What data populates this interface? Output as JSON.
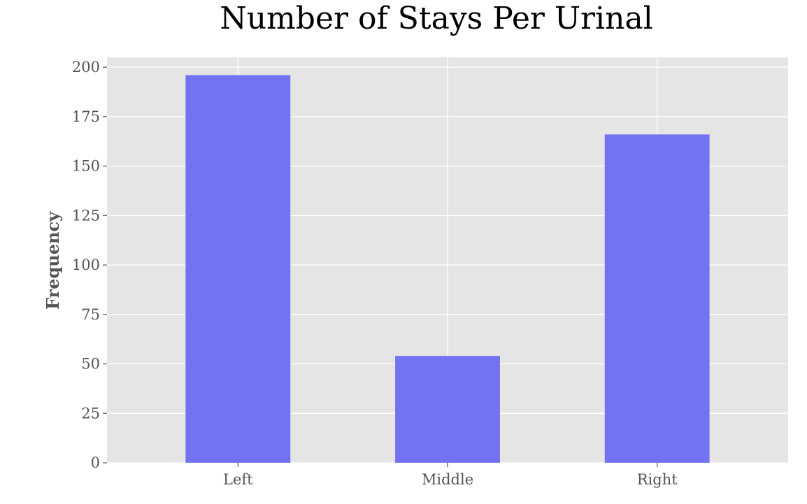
{
  "chart_data": {
    "type": "bar",
    "title": "Number of Stays Per Urinal",
    "xlabel": "",
    "ylabel": "Frequency",
    "categories": [
      "Left",
      "Middle",
      "Right"
    ],
    "values": [
      196,
      54,
      166
    ],
    "ylim": [
      0,
      205
    ],
    "yticks": [
      0,
      25,
      50,
      75,
      100,
      125,
      150,
      175,
      200
    ],
    "grid": true,
    "legend": "none",
    "colors": {
      "bar": "#6f6ff3",
      "plot_background": "#e5e5e5",
      "grid": "#ffffff",
      "tick_text": "#555555",
      "title_text": "#000000"
    }
  }
}
